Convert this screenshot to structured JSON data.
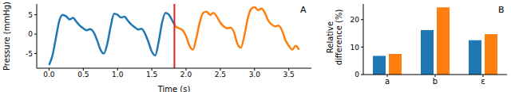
{
  "chart_data": [
    {
      "type": "line",
      "title": "A",
      "x_label": "Time (s)",
      "y_label": "Pressure (mmHg)",
      "x": [
        0,
        0.05,
        0.1,
        0.15,
        0.2,
        0.25,
        0.3,
        0.35,
        0.4,
        0.45,
        0.5,
        0.55,
        0.6,
        0.65,
        0.7,
        0.75,
        0.8,
        0.85,
        0.9,
        0.95,
        1.0,
        1.05,
        1.1,
        1.15,
        1.2,
        1.25,
        1.3,
        1.35,
        1.4,
        1.45,
        1.5,
        1.55,
        1.6,
        1.65,
        1.7,
        1.75,
        1.8,
        1.83,
        1.85,
        1.9,
        1.95,
        2.0,
        2.05,
        2.1,
        2.15,
        2.2,
        2.25,
        2.3,
        2.35,
        2.4,
        2.45,
        2.5,
        2.55,
        2.6,
        2.65,
        2.7,
        2.75,
        2.8,
        2.85,
        2.9,
        2.95,
        3.0,
        3.05,
        3.1,
        3.15,
        3.2,
        3.25,
        3.3,
        3.35,
        3.4,
        3.45,
        3.5,
        3.55,
        3.6,
        3.65
      ],
      "series": [
        {
          "color": "#1f77b4",
          "values": [
            -8,
            -5.5,
            -1,
            3.5,
            5,
            4.6,
            3.8,
            4.2,
            3.2,
            2.2,
            1.5,
            1,
            1.3,
            0.5,
            -1.5,
            -4,
            -5,
            -2.5,
            2,
            5.3,
            5,
            4.3,
            4.5,
            3.5,
            2.5,
            1.8,
            1.2,
            1.4,
            0.2,
            -2,
            -4.5,
            -5.5,
            -2,
            3,
            5.5,
            5,
            3.5,
            2.5,
            null,
            null,
            null,
            null,
            null,
            null,
            null,
            null,
            null,
            null,
            null,
            null,
            null,
            null,
            null,
            null,
            null,
            null,
            null,
            null,
            null,
            null,
            null,
            null,
            null,
            null,
            null,
            null,
            null,
            null,
            null,
            null,
            null,
            null,
            null,
            null,
            null
          ]
        },
        {
          "color": "#ff7f0e",
          "values": [
            null,
            null,
            null,
            null,
            null,
            null,
            null,
            null,
            null,
            null,
            null,
            null,
            null,
            null,
            null,
            null,
            null,
            null,
            null,
            null,
            null,
            null,
            null,
            null,
            null,
            null,
            null,
            null,
            null,
            null,
            null,
            null,
            null,
            null,
            null,
            null,
            null,
            2.5,
            2,
            1.5,
            1,
            -0.5,
            -3,
            -4,
            -1,
            3,
            5.5,
            5.8,
            5,
            5.5,
            4.5,
            3,
            2,
            1.5,
            1.7,
            0.5,
            -2.5,
            -3.5,
            -0.5,
            4,
            6.5,
            7,
            6.2,
            6.6,
            5.5,
            3.5,
            2.5,
            2,
            2.2,
            1,
            -1.5,
            -3,
            -4,
            -3,
            -4
          ]
        }
      ],
      "vline": {
        "x": 1.83,
        "color": "#d62728"
      },
      "xlim": [
        -0.18,
        3.83
      ],
      "xticks": [
        {
          "value": 0,
          "label": "0.0"
        },
        0.5,
        {
          "value": 1,
          "label": "1.0"
        },
        1.5,
        {
          "value": 2,
          "label": "2.0"
        },
        2.5,
        {
          "value": 3,
          "label": "3.0"
        },
        3.5
      ],
      "ylim": [
        -8.8,
        7.8
      ],
      "yticks": [
        -5,
        0,
        5
      ]
    },
    {
      "type": "bar",
      "title": "B",
      "y_label": "Relative\ndifference (%)",
      "categories": [
        "a",
        "b",
        "ε"
      ],
      "series": [
        {
          "color": "#1f77b4",
          "values": [
            6.8,
            16.2,
            12.5
          ]
        },
        {
          "color": "#ff7f0e",
          "values": [
            7.5,
            24.5,
            14.7
          ]
        }
      ],
      "ylim": [
        0,
        25.7
      ],
      "yticks": [
        0,
        10,
        20
      ]
    }
  ]
}
